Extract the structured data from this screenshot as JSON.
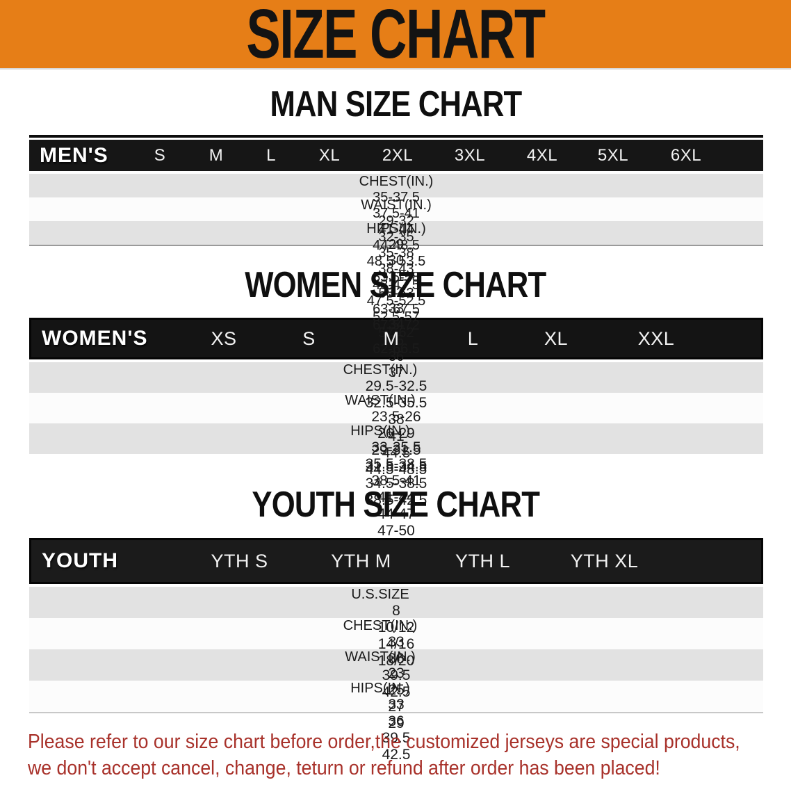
{
  "banner": {
    "title": "SIZE CHART"
  },
  "colors": {
    "banner_orange": "#E67E17",
    "header_bar_black": "#161616",
    "row_gray": "#E2E2E2",
    "row_white": "#FCFCFC",
    "warning_red": "#A8312A",
    "heading_black": "#0F0F0F"
  },
  "chart_data": [
    {
      "type": "table",
      "title": "MAN SIZE CHART",
      "corner_label": "MEN'S",
      "columns": [
        "S",
        "M",
        "L",
        "XL",
        "2XL",
        "3XL",
        "4XL",
        "5XL",
        "6XL"
      ],
      "rows": [
        {
          "label": "CHEST(IN.)",
          "values": [
            "35-37.5",
            "37.5-41",
            "41-44",
            "44-48.5",
            "48.5-53.5",
            "53.5-58",
            "58-63",
            "63-67.5",
            "67.5-72"
          ]
        },
        {
          "label": "WAIST(IN.)",
          "values": [
            "29-32",
            "32-35",
            "35-38",
            "38-43",
            "43-47.5",
            "47.5-52.5",
            "52.5-57",
            "57-62",
            "62-66.5"
          ]
        },
        {
          "label": "HIPS(IN.)",
          "values": [
            "29",
            "30",
            "31",
            "32",
            "33",
            "34",
            "35",
            "36",
            "37"
          ]
        }
      ]
    },
    {
      "type": "table",
      "title": "WOMEN SIZE CHART",
      "corner_label": "WOMEN'S",
      "columns": [
        "XS",
        "S",
        "M",
        "L",
        "XL",
        "XXL"
      ],
      "rows": [
        {
          "label": "CHEST(IN.)",
          "values": [
            "29.5-32.5",
            "32.5-35.5",
            "38",
            "41",
            "44.5",
            "44.5-48.5"
          ]
        },
        {
          "label": "WAIST(IN.)",
          "values": [
            "23.5-26",
            "26-29",
            "29-31.5",
            "31.5-34.5",
            "34.5-38.5",
            "38.5-42.5"
          ]
        },
        {
          "label": "HIPS(IN.)",
          "values": [
            "33-35.5",
            "35.5-38.5",
            "38.5-41",
            "41-44",
            "44-47",
            "47-50"
          ]
        }
      ]
    },
    {
      "type": "table",
      "title": "YOUTH SIZE CHART",
      "corner_label": "YOUTH",
      "columns": [
        "YTH S",
        "YTH M",
        "YTH L",
        "YTH XL"
      ],
      "rows": [
        {
          "label": "U.S.SIZE",
          "values": [
            "8",
            "10/12",
            "14/16",
            "18/20"
          ]
        },
        {
          "label": "CHEST(IN.)",
          "values": [
            "33",
            "36",
            "39.5",
            "42.5"
          ]
        },
        {
          "label": "WAIST(IN.)",
          "values": [
            "23",
            "25",
            "27",
            "29"
          ]
        },
        {
          "label": "HIPS(IN.)",
          "values": [
            "33",
            "36",
            "39.5",
            "42.5"
          ]
        }
      ]
    }
  ],
  "footer": {
    "line1": "Please refer to our size chart before order,the customized jerseys are special products,",
    "line2": "we don't accept cancel, change, teturn or refund after order has been placed!"
  }
}
